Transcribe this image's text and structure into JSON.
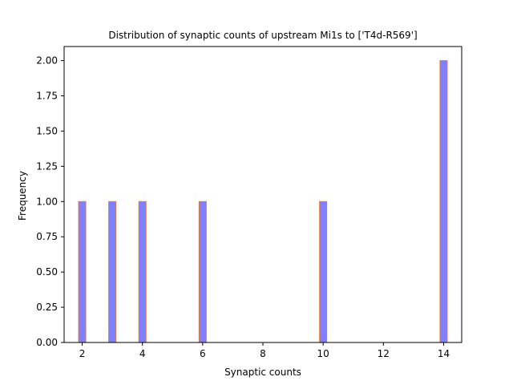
{
  "chart_data": {
    "type": "bar",
    "title": "Distribution of synaptic counts of upstream Mi1s to ['T4d-R569']",
    "xlabel": "Synaptic counts",
    "ylabel": "Frequency",
    "xlim": [
      1.4,
      14.6
    ],
    "ylim": [
      0,
      2.1
    ],
    "x_ticks": [
      2,
      4,
      6,
      8,
      10,
      12,
      14
    ],
    "y_ticks": [
      0.0,
      0.25,
      0.5,
      0.75,
      1.0,
      1.25,
      1.5,
      1.75,
      2.0
    ],
    "y_tick_labels": [
      "0.00",
      "0.25",
      "0.50",
      "0.75",
      "1.00",
      "1.25",
      "1.50",
      "1.75",
      "2.00"
    ],
    "bin_width": 0.24,
    "bars": [
      {
        "x": 2,
        "count": 1
      },
      {
        "x": 3,
        "count": 1
      },
      {
        "x": 4,
        "count": 1
      },
      {
        "x": 6,
        "count": 1
      },
      {
        "x": 10,
        "count": 1
      },
      {
        "x": 14,
        "count": 2
      }
    ],
    "bar_fill": "#8080ff",
    "bar_edge": "#e07b39",
    "grid": false
  }
}
